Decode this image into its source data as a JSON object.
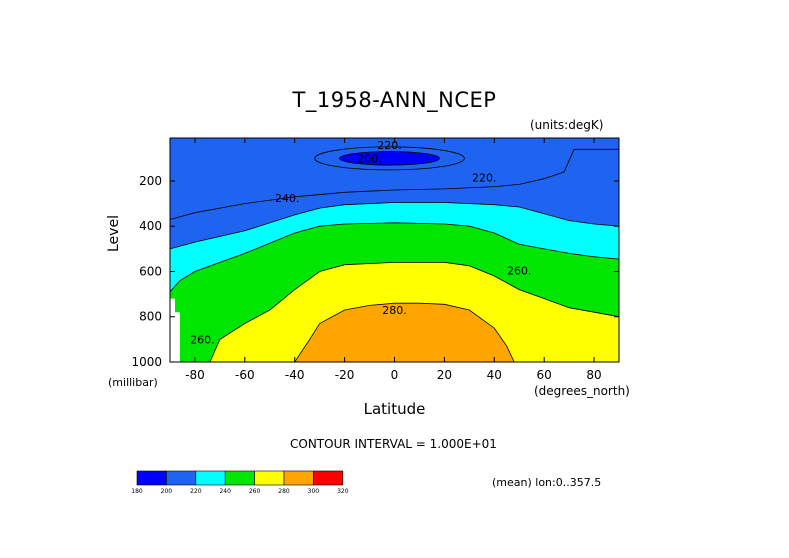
{
  "chart_data": {
    "type": "heatmap",
    "title": "T_1958-ANN_NCEP",
    "units_label": "(units:degK)",
    "xlabel": "Latitude",
    "x_units": "(degrees_north)",
    "ylabel": "Level",
    "y_units": "(millibar)",
    "xlim": [
      -90,
      90
    ],
    "ylim": [
      1000,
      10
    ],
    "x_ticks": [
      "-80",
      "-60",
      "-40",
      "-20",
      "0",
      "20",
      "40",
      "60",
      "80"
    ],
    "x_tick_values": [
      -80,
      -60,
      -40,
      -20,
      0,
      20,
      40,
      60,
      80
    ],
    "y_ticks": [
      "200",
      "400",
      "600",
      "800",
      "1000"
    ],
    "y_tick_values": [
      200,
      400,
      600,
      800,
      1000
    ],
    "contour_interval_label": "CONTOUR INTERVAL = 1.000E+01",
    "mean_label": "(mean) lon:0..357.5",
    "colorbar": {
      "boundaries": [
        "180",
        "200",
        "220",
        "240",
        "260",
        "280",
        "300",
        "320"
      ],
      "colors": [
        "#0000ff",
        "#1e64f0",
        "#00ffff",
        "#00e600",
        "#ffff00",
        "#ffa500",
        "#ff0000"
      ]
    },
    "contour_labels": [
      {
        "text": "220.",
        "lat": -2,
        "p": 40
      },
      {
        "text": "200.",
        "lat": -10,
        "p": 100
      },
      {
        "text": "220.",
        "lat": 36,
        "p": 185
      },
      {
        "text": "240.",
        "lat": -43,
        "p": 275
      },
      {
        "text": "260.",
        "lat": 50,
        "p": 595
      },
      {
        "text": "280.",
        "lat": 0,
        "p": 770
      },
      {
        "text": "260.",
        "lat": -77,
        "p": 900
      }
    ],
    "bands": [
      {
        "level": "200-220",
        "color": "#1e64f0",
        "profile": [
          [
            -90,
            370
          ],
          [
            -80,
            340
          ],
          [
            -60,
            300
          ],
          [
            -40,
            270
          ],
          [
            -20,
            250
          ],
          [
            0,
            240
          ],
          [
            20,
            235
          ],
          [
            40,
            225
          ],
          [
            50,
            215
          ],
          [
            60,
            190
          ],
          [
            68,
            160
          ],
          [
            72,
            60
          ],
          [
            90,
            60
          ]
        ]
      },
      {
        "level": "220-240",
        "color": "#00ffff",
        "profile": [
          [
            -90,
            500
          ],
          [
            -80,
            470
          ],
          [
            -60,
            420
          ],
          [
            -40,
            350
          ],
          [
            -30,
            320
          ],
          [
            -20,
            305
          ],
          [
            0,
            295
          ],
          [
            20,
            295
          ],
          [
            40,
            305
          ],
          [
            50,
            315
          ],
          [
            60,
            345
          ],
          [
            70,
            375
          ],
          [
            80,
            390
          ],
          [
            90,
            400
          ]
        ]
      },
      {
        "level": "240-260",
        "color": "#00e600",
        "profile": [
          [
            -90,
            690
          ],
          [
            -86,
            640
          ],
          [
            -80,
            600
          ],
          [
            -70,
            560
          ],
          [
            -60,
            520
          ],
          [
            -40,
            430
          ],
          [
            -30,
            400
          ],
          [
            -20,
            390
          ],
          [
            0,
            385
          ],
          [
            20,
            390
          ],
          [
            30,
            400
          ],
          [
            40,
            430
          ],
          [
            50,
            480
          ],
          [
            60,
            500
          ],
          [
            70,
            520
          ],
          [
            80,
            535
          ],
          [
            90,
            545
          ]
        ]
      },
      {
        "level": "260-280",
        "color": "#ffff00",
        "profile": [
          [
            -90,
            1000
          ],
          [
            -74,
            1000
          ],
          [
            -70,
            900
          ],
          [
            -60,
            830
          ],
          [
            -50,
            770
          ],
          [
            -40,
            680
          ],
          [
            -30,
            600
          ],
          [
            -20,
            570
          ],
          [
            0,
            560
          ],
          [
            20,
            560
          ],
          [
            30,
            575
          ],
          [
            40,
            620
          ],
          [
            50,
            680
          ],
          [
            60,
            720
          ],
          [
            70,
            760
          ],
          [
            80,
            780
          ],
          [
            90,
            800
          ]
        ]
      },
      {
        "level": "280-300",
        "color": "#ffa500",
        "profile": [
          [
            -90,
            1000
          ],
          [
            -40,
            1000
          ],
          [
            -34,
            900
          ],
          [
            -30,
            830
          ],
          [
            -20,
            770
          ],
          [
            -10,
            750
          ],
          [
            0,
            740
          ],
          [
            10,
            740
          ],
          [
            20,
            745
          ],
          [
            30,
            770
          ],
          [
            40,
            850
          ],
          [
            45,
            930
          ],
          [
            48,
            1000
          ],
          [
            90,
            1000
          ]
        ]
      }
    ],
    "missing_regions": [
      {
        "desc": "below surface",
        "polygon": [
          [
            -90,
            720
          ],
          [
            -88,
            720
          ],
          [
            -88,
            1000
          ],
          [
            -90,
            1000
          ]
        ]
      },
      {
        "desc": "below surface",
        "polygon": [
          [
            -88,
            780
          ],
          [
            -86,
            780
          ],
          [
            -86,
            1000
          ],
          [
            -88,
            1000
          ]
        ]
      }
    ],
    "inner_low": {
      "level": "<200",
      "color": "#0000ff",
      "center_lat": -2,
      "center_p": 100,
      "half_width_lat": 20,
      "half_height_p": 30
    }
  }
}
